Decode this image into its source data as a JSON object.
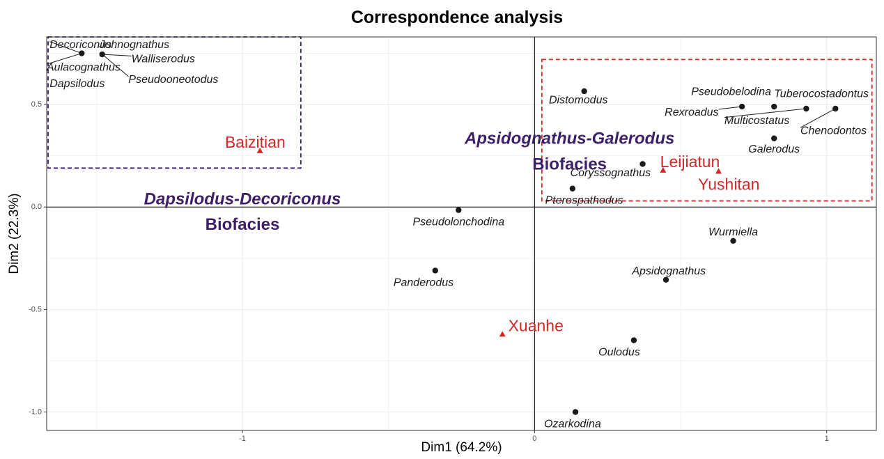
{
  "chart_data": {
    "type": "scatter",
    "title": "Correspondence analysis",
    "xlabel": "Dim1 (64.2%)",
    "ylabel": "Dim2 (22.3%)",
    "xlim": [
      -1.67,
      1.17
    ],
    "ylim": [
      -1.09,
      0.83
    ],
    "xticks": [
      {
        "v": -1,
        "label": "-1"
      },
      {
        "v": 0,
        "label": "0"
      },
      {
        "v": 1,
        "label": "1"
      }
    ],
    "yticks": [
      {
        "v": -1.0,
        "label": "-1.0"
      },
      {
        "v": -0.5,
        "label": "-0.5"
      },
      {
        "v": 0.0,
        "label": "0.0"
      },
      {
        "v": 0.5,
        "label": "0.5"
      }
    ],
    "grid": true,
    "colors": {
      "species": "#1a1a1a",
      "site": "#d62728",
      "facies_text": "#3c1f67",
      "box_left": "#3c1f67",
      "box_right": "#d62728"
    },
    "species": [
      {
        "name": "Decoriconus",
        "x": -1.55,
        "y": 0.75,
        "lx": -1.66,
        "ly": 0.79,
        "anchor": "start",
        "leader": true
      },
      {
        "name": "Johnognathus",
        "x": -1.48,
        "y": 0.745,
        "lx": -1.49,
        "ly": 0.79,
        "anchor": "start",
        "leader": false
      },
      {
        "name": "Aulacognathus",
        "x": -1.55,
        "y": 0.75,
        "lx": -1.67,
        "ly": 0.68,
        "anchor": "start",
        "leader": true
      },
      {
        "name": "Walliserodus",
        "x": -1.48,
        "y": 0.745,
        "lx": -1.38,
        "ly": 0.72,
        "anchor": "start",
        "leader": true
      },
      {
        "name": "Dapsilodus",
        "x": -1.55,
        "y": 0.75,
        "lx": -1.66,
        "ly": 0.6,
        "anchor": "start",
        "leader": false
      },
      {
        "name": "Pseudooneotodus",
        "x": -1.48,
        "y": 0.745,
        "lx": -1.39,
        "ly": 0.62,
        "anchor": "start",
        "leader": true
      },
      {
        "name": "Distomodus",
        "x": 0.17,
        "y": 0.565,
        "lx": 0.15,
        "ly": 0.52,
        "anchor": "middle",
        "leader": false
      },
      {
        "name": "Pseudobelodina",
        "x": 0.71,
        "y": 0.49,
        "lx": 0.81,
        "ly": 0.56,
        "anchor": "end",
        "leader": false
      },
      {
        "name": "Tuberocostadontus",
        "x": 0.82,
        "y": 0.49,
        "lx": 0.82,
        "ly": 0.55,
        "anchor": "start",
        "leader": false
      },
      {
        "name": "Rexroadus",
        "x": 0.71,
        "y": 0.49,
        "lx": 0.63,
        "ly": 0.46,
        "anchor": "end",
        "leader": true
      },
      {
        "name": "Multicostatus",
        "x": 0.93,
        "y": 0.48,
        "lx": 0.65,
        "ly": 0.42,
        "anchor": "start",
        "leader": true
      },
      {
        "name": "Chenodontos",
        "x": 1.03,
        "y": 0.48,
        "lx": 0.91,
        "ly": 0.37,
        "anchor": "start",
        "leader": true
      },
      {
        "name": "Galerodus",
        "x": 0.82,
        "y": 0.335,
        "lx": 0.82,
        "ly": 0.28,
        "anchor": "middle",
        "leader": false
      },
      {
        "name": "Coryssognathus",
        "x": 0.37,
        "y": 0.21,
        "lx": 0.26,
        "ly": 0.165,
        "anchor": "middle",
        "leader": false
      },
      {
        "name": "Pterospathodus",
        "x": 0.13,
        "y": 0.09,
        "lx": 0.17,
        "ly": 0.03,
        "anchor": "middle",
        "leader": false
      },
      {
        "name": "Pseudolonchodina",
        "x": -0.26,
        "y": -0.015,
        "lx": -0.26,
        "ly": -0.075,
        "anchor": "middle",
        "leader": false
      },
      {
        "name": "Wurmiella",
        "x": 0.68,
        "y": -0.165,
        "lx": 0.68,
        "ly": -0.125,
        "anchor": "middle",
        "leader": false
      },
      {
        "name": "Panderodus",
        "x": -0.34,
        "y": -0.31,
        "lx": -0.38,
        "ly": -0.37,
        "anchor": "middle",
        "leader": false
      },
      {
        "name": "Apsidognathus",
        "x": 0.45,
        "y": -0.355,
        "lx": 0.46,
        "ly": -0.315,
        "anchor": "middle",
        "leader": false
      },
      {
        "name": "Oulodus",
        "x": 0.34,
        "y": -0.65,
        "lx": 0.29,
        "ly": -0.71,
        "anchor": "middle",
        "leader": false
      },
      {
        "name": "Ozarkodina",
        "x": 0.14,
        "y": -1.0,
        "lx": 0.13,
        "ly": -1.06,
        "anchor": "middle",
        "leader": false
      }
    ],
    "sites": [
      {
        "name": "Baizitian",
        "x": -0.94,
        "y": 0.275,
        "lx": -1.06,
        "ly": 0.31
      },
      {
        "name": "Leijiatun",
        "x": 0.44,
        "y": 0.18,
        "lx": 0.43,
        "ly": 0.215
      },
      {
        "name": "Yushitan",
        "x": 0.63,
        "y": 0.175,
        "lx": 0.56,
        "ly": 0.105
      },
      {
        "name": "Xuanhe",
        "x": -0.11,
        "y": -0.62,
        "lx": -0.09,
        "ly": -0.585
      }
    ],
    "biofacies": [
      {
        "line1": "Dapsilodus-Decoriconus",
        "line2": "Biofacies",
        "x": -1.0,
        "y1": 0.035,
        "y2": -0.09
      },
      {
        "line1": "Apsidognathus-Galerodus",
        "line2": "Biofacies",
        "x": 0.12,
        "y1": 0.33,
        "y2": 0.205
      }
    ],
    "groups": [
      {
        "name": "left-group",
        "x0": -1.67,
        "x1": -0.8,
        "y0": 0.19,
        "y1": 0.83,
        "color": "#3c1f67"
      },
      {
        "name": "right-group",
        "x0": 0.025,
        "x1": 1.155,
        "y0": 0.03,
        "y1": 0.72,
        "color": "#d62728"
      }
    ]
  }
}
